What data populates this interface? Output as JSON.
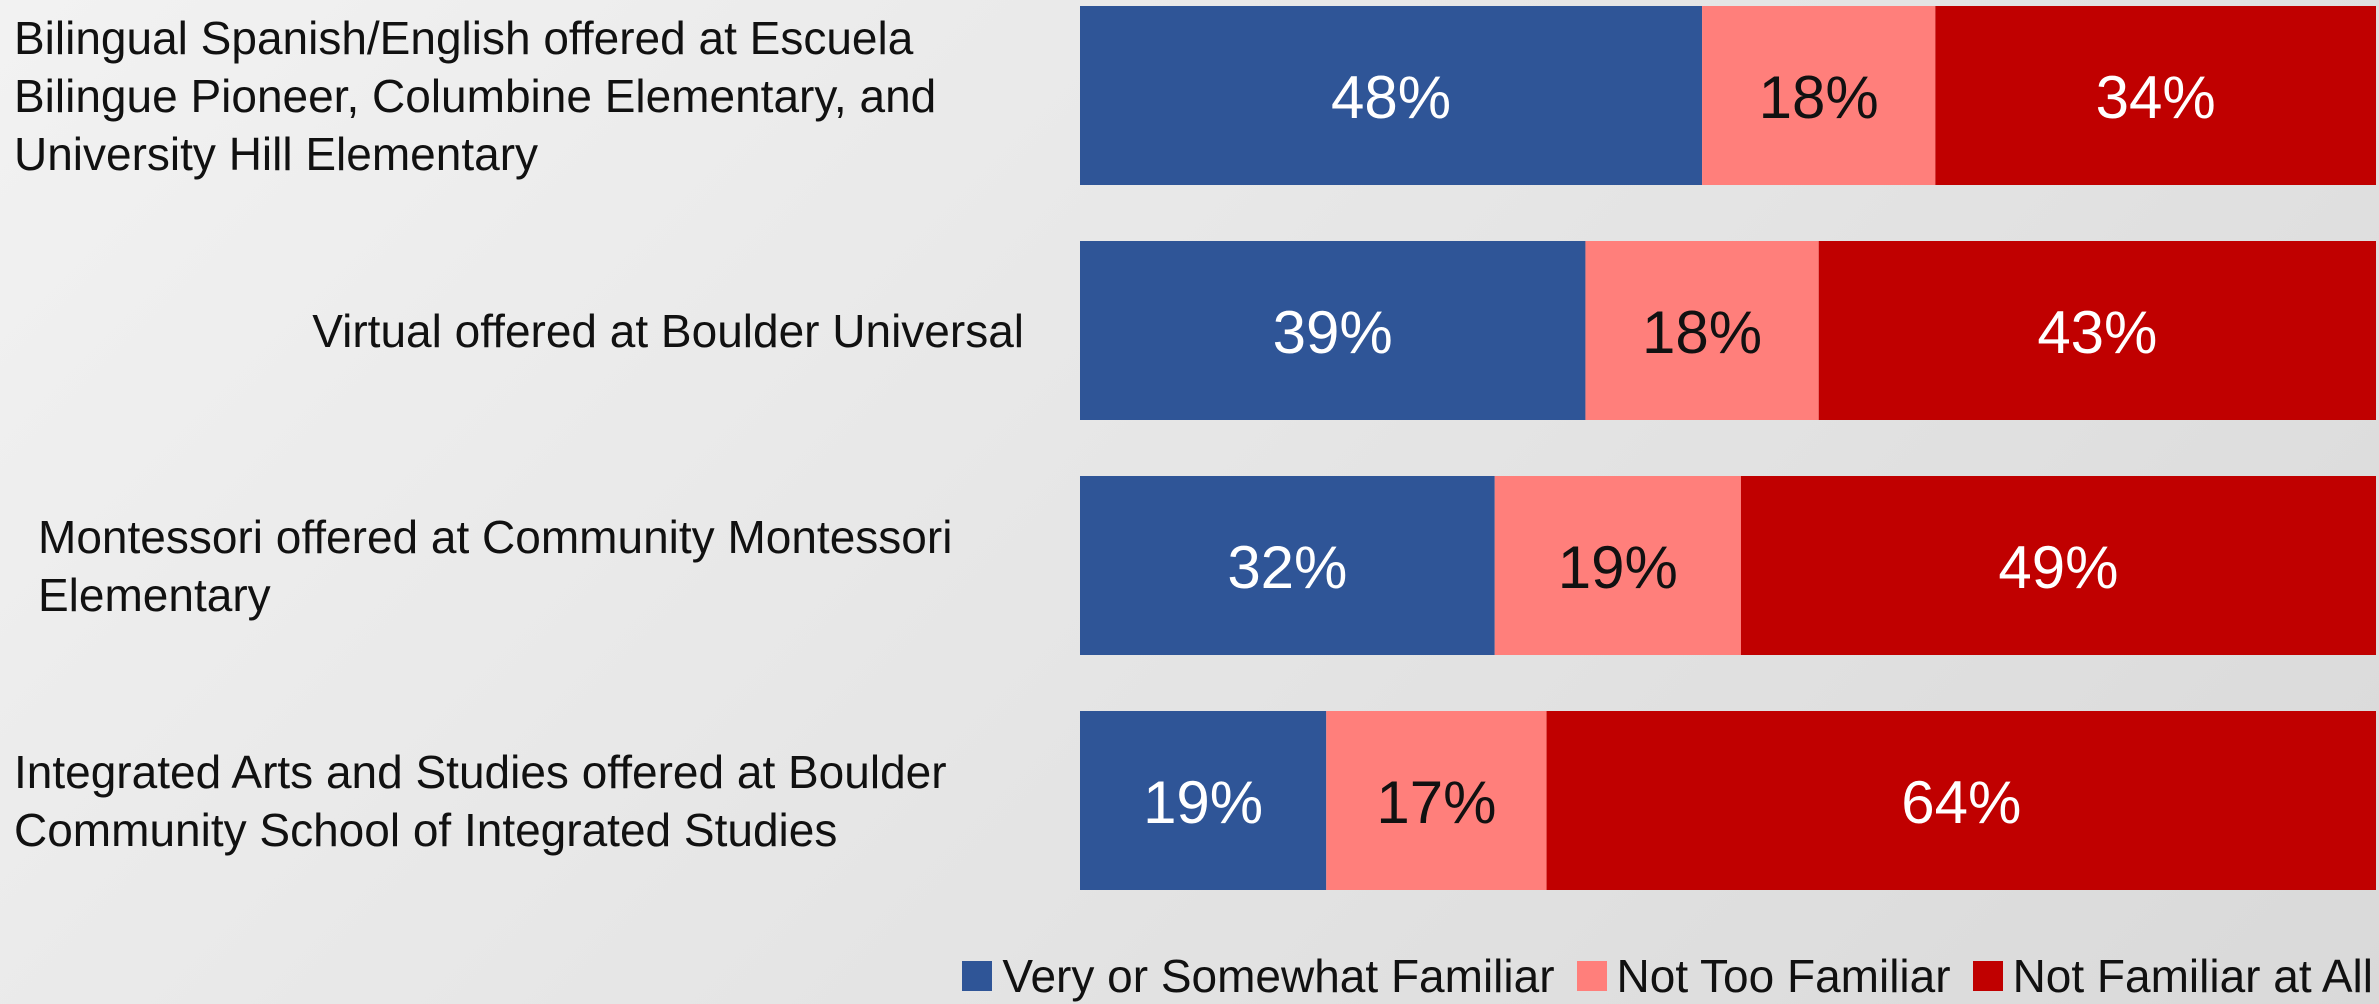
{
  "chart_data": {
    "type": "stacked-bar-horizontal",
    "categories": [
      "Bilingual Spanish/English offered at Escuela Bilingue Pioneer, Columbine Elementary, and University Hill Elementary",
      "Virtual offered at Boulder Universal",
      "Montessori offered at Community Montessori Elementary",
      "Integrated Arts and Studies offered at Boulder Community School of Integrated Studies"
    ],
    "series": [
      {
        "name": "Very or Somewhat Familiar",
        "color": "#2f5597",
        "values": [
          48,
          39,
          32,
          19
        ],
        "value_labels": [
          "48%",
          "39%",
          "32%",
          "19%"
        ]
      },
      {
        "name": "Not Too Familiar",
        "color": "#ff7f7b",
        "values": [
          18,
          18,
          19,
          17
        ],
        "value_labels": [
          "18%",
          "18%",
          "19%",
          "17%"
        ]
      },
      {
        "name": "Not Familiar at All",
        "color": "#c00000",
        "values": [
          34,
          43,
          49,
          64
        ],
        "value_labels": [
          "34%",
          "43%",
          "49%",
          "64%"
        ]
      }
    ],
    "legend": "bottom-right"
  }
}
